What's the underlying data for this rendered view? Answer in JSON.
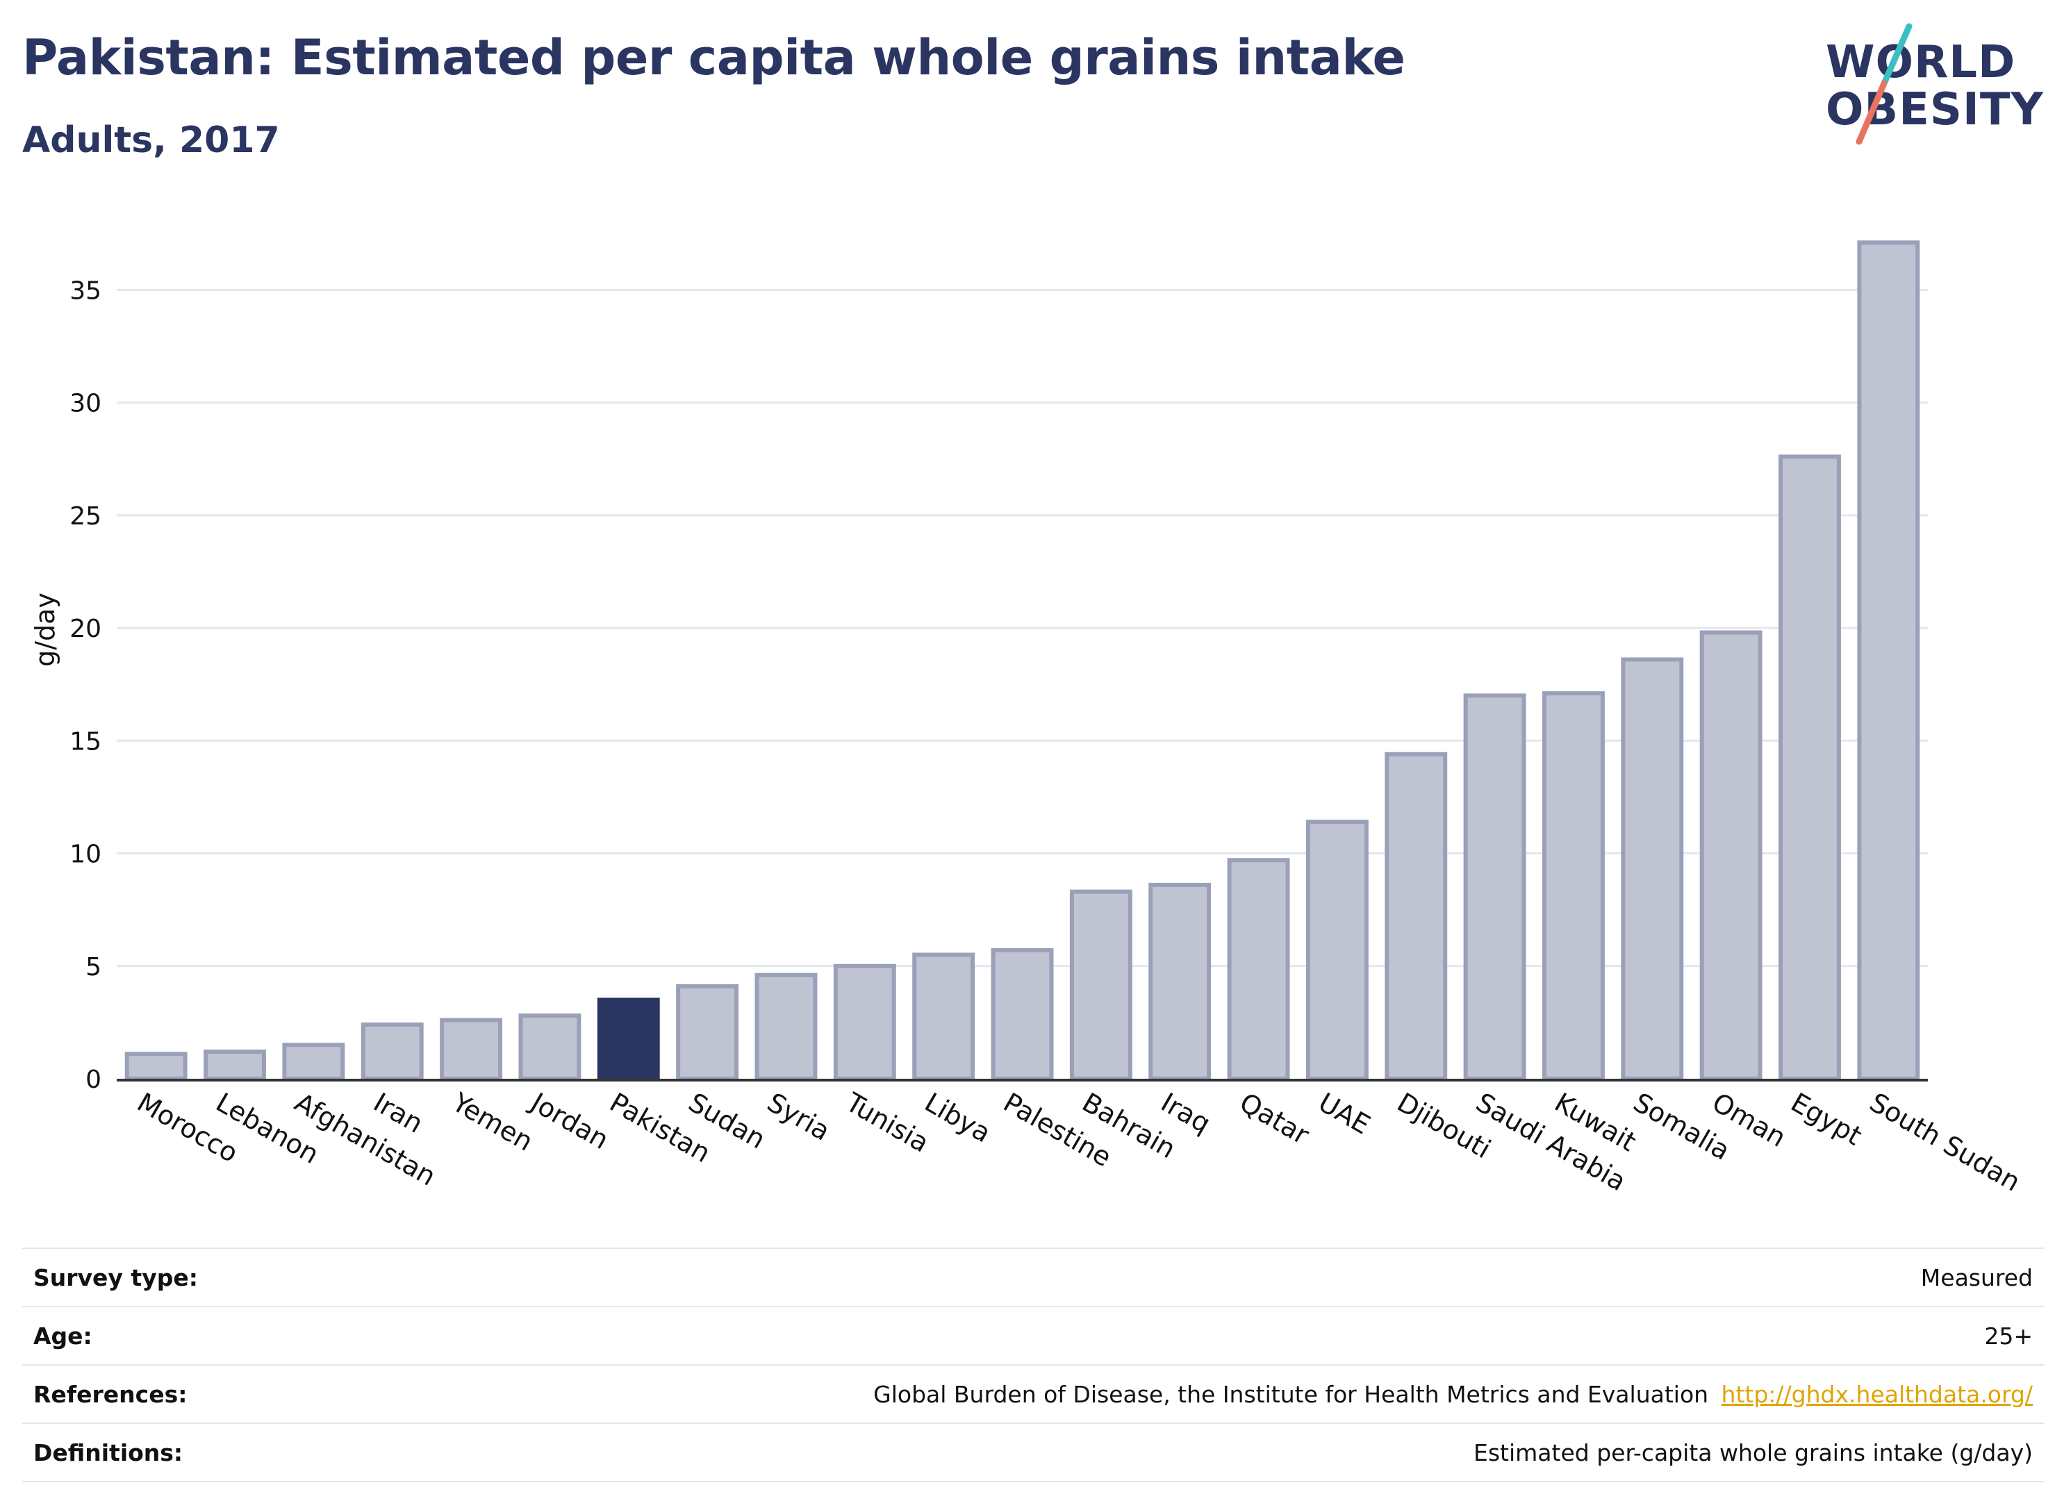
{
  "header": {
    "title": "Pakistan: Estimated per capita whole grains intake",
    "subtitle": "Adults, 2017"
  },
  "logo": {
    "line1": "WORLD",
    "line2": "OBESITY"
  },
  "colors": {
    "highlight": "#2b3561",
    "bar": "#c0c3d1",
    "bar_border": "#9aa0b8",
    "grid": "#e5e7ee",
    "logo_teal": "#3bbfc4",
    "logo_coral": "#e8735f"
  },
  "chart_data": {
    "type": "bar",
    "title": "Pakistan: Estimated per capita whole grains intake",
    "subtitle": "Adults, 2017",
    "xlabel": "",
    "ylabel": "g/day",
    "ylim": [
      0,
      38
    ],
    "yticks": [
      0,
      5,
      10,
      15,
      20,
      25,
      30,
      35
    ],
    "grid": true,
    "highlight": "Pakistan",
    "categories": [
      "Morocco",
      "Lebanon",
      "Afghanistan",
      "Iran",
      "Yemen",
      "Jordan",
      "Pakistan",
      "Sudan",
      "Syria",
      "Tunisia",
      "Libya",
      "Palestine",
      "Bahrain",
      "Iraq",
      "Qatar",
      "UAE",
      "Djibouti",
      "Saudi Arabia",
      "Kuwait",
      "Somalia",
      "Oman",
      "Egypt",
      "South Sudan"
    ],
    "values": [
      1.1,
      1.2,
      1.5,
      2.4,
      2.6,
      2.8,
      3.5,
      4.1,
      4.6,
      5.0,
      5.5,
      5.7,
      8.3,
      8.6,
      9.7,
      11.4,
      14.4,
      17.0,
      17.1,
      18.6,
      19.8,
      27.6,
      37.1
    ]
  },
  "info_table": {
    "survey_type": {
      "label": "Survey type:",
      "value": "Measured"
    },
    "age": {
      "label": "Age:",
      "value": "25+"
    },
    "references": {
      "label": "References:",
      "value": "Global Burden of Disease, the Institute for Health Metrics and Evaluation",
      "link": "http://ghdx.healthdata.org/"
    },
    "definitions": {
      "label": "Definitions:",
      "value": "Estimated per-capita whole grains intake (g/day)"
    }
  }
}
